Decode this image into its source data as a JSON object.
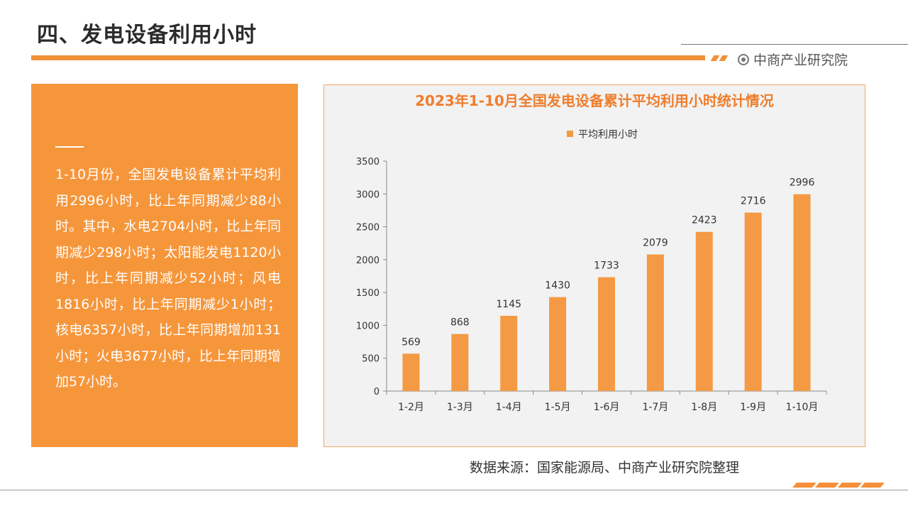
{
  "header": {
    "title": "四、发电设备利用小时",
    "brand": "中商产业研究院"
  },
  "colors": {
    "accent": "#f6963b",
    "bar": "#f49a44",
    "title_orange": "#ef7d2d"
  },
  "summary": {
    "text": "1-10月份，全国发电设备累计平均利用2996小时，比上年同期减少88小时。其中，水电2704小时，比上年同期减少298小时；太阳能发电1120小时，比上年同期减少52小时；风电1816小时，比上年同期减少1小时；核电6357小时，比上年同期增加131小时；火电3677小时，比上年同期增加57小时。"
  },
  "chart_data": {
    "type": "bar",
    "title": "2023年1-10月全国发电设备累计平均利用小时统计情况",
    "legend_position": "top",
    "categories": [
      "1-2月",
      "1-3月",
      "1-4月",
      "1-5月",
      "1-6月",
      "1-7月",
      "1-8月",
      "1-9月",
      "1-10月"
    ],
    "series": [
      {
        "name": "平均利用小时",
        "values": [
          569,
          868,
          1145,
          1430,
          1733,
          2079,
          2423,
          2716,
          2996
        ]
      }
    ],
    "ylim": [
      0,
      3500
    ],
    "yticks": [
      0,
      500,
      1000,
      1500,
      2000,
      2500,
      3000,
      3500
    ],
    "grid": false
  },
  "footer": {
    "source": "数据来源：国家能源局、中商产业研究院整理"
  }
}
